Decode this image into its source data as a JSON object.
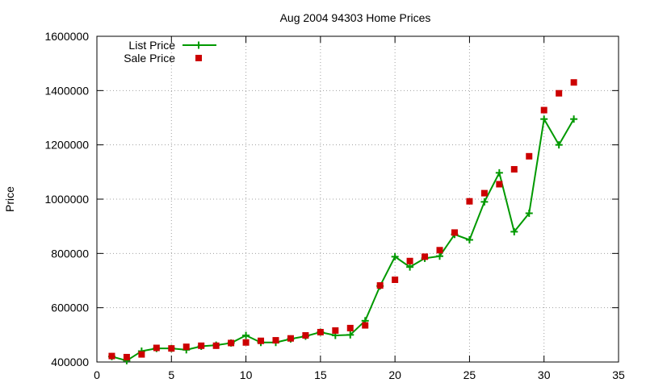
{
  "chart_data": {
    "type": "line",
    "title": "Aug 2004 94303 Home Prices",
    "xlabel": "",
    "ylabel": "Price",
    "xlim": [
      0,
      35
    ],
    "ylim": [
      400000,
      1600000
    ],
    "x_ticks": [
      0,
      5,
      10,
      15,
      20,
      25,
      30,
      35
    ],
    "y_ticks": [
      400000,
      600000,
      800000,
      1000000,
      1200000,
      1400000,
      1600000
    ],
    "x_tick_labels": [
      "0",
      "5",
      "10",
      "15",
      "20",
      "25",
      "30",
      "35"
    ],
    "y_tick_labels": [
      "400000",
      "600000",
      "800000",
      "1000000",
      "1200000",
      "1400000",
      "1600000"
    ],
    "grid": true,
    "legend_position": "top-left",
    "x": [
      1,
      2,
      3,
      4,
      5,
      6,
      7,
      8,
      9,
      10,
      11,
      12,
      13,
      14,
      15,
      16,
      17,
      18,
      19,
      20,
      21,
      22,
      23,
      24,
      25,
      26,
      27,
      28,
      29,
      30,
      31,
      32
    ],
    "series": [
      {
        "name": "List Price",
        "style": "line-plus",
        "color": "#009900",
        "values": [
          420000,
          405000,
          440000,
          450000,
          450000,
          445000,
          458000,
          462000,
          470000,
          498000,
          472000,
          472000,
          485000,
          495000,
          510000,
          498000,
          500000,
          552000,
          680000,
          788000,
          750000,
          782000,
          790000,
          870000,
          850000,
          990000,
          1097000,
          880000,
          948000,
          1295000,
          1200000,
          1295000
        ]
      },
      {
        "name": "Sale Price",
        "style": "square-markers",
        "color": "#cc0000",
        "values": [
          422000,
          418000,
          428000,
          452000,
          450000,
          456000,
          460000,
          460000,
          470000,
          472000,
          478000,
          480000,
          487000,
          498000,
          510000,
          516000,
          525000,
          535000,
          682000,
          703000,
          772000,
          788000,
          812000,
          877000,
          992000,
          1022000,
          1055000,
          1110000,
          1158000,
          1328000,
          1390000,
          1430000
        ]
      }
    ]
  }
}
